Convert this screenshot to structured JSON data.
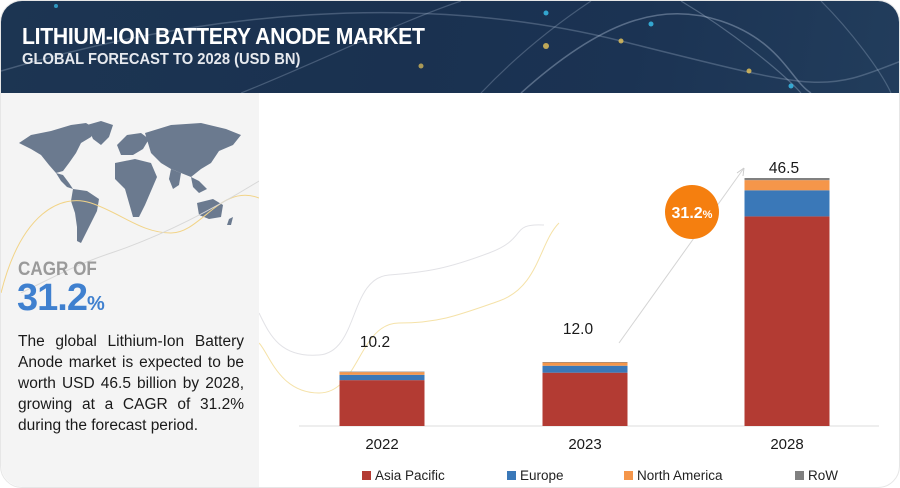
{
  "header": {
    "title": "LITHIUM-ION BATTERY ANODE MARKET",
    "subtitle": "GLOBAL FORECAST TO 2028 (USD BN)"
  },
  "left_panel": {
    "map_icon": "world-map-icon",
    "cagr_label": "CAGR OF",
    "cagr_number": "31.2",
    "cagr_percent": "%",
    "description": "The global Lithium-Ion Battery Anode market is expected to be worth USD 46.5 billion by 2028, growing at a CAGR of 31.2% during the forecast period."
  },
  "colors": {
    "asia_pacific": "#b33b33",
    "europe": "#3a78b8",
    "north_america": "#f5964a",
    "row": "#808080",
    "badge": "#f57f0f",
    "accent_blue": "#3f80cf"
  },
  "chart_data": {
    "type": "bar",
    "stacked": true,
    "title": "Lithium-Ion Battery Anode Market, Global Forecast to 2028 (USD BN)",
    "categories": [
      "2022",
      "2023",
      "2028"
    ],
    "totals": [
      "10.2",
      "12.0",
      "46.5"
    ],
    "series": [
      {
        "name": "Asia Pacific",
        "color": "#b33b33",
        "values": [
          8.6,
          10.0,
          39.3
        ]
      },
      {
        "name": "Europe",
        "color": "#3a78b8",
        "values": [
          1.0,
          1.3,
          4.9
        ]
      },
      {
        "name": "North America",
        "color": "#f5964a",
        "values": [
          0.5,
          0.6,
          1.9
        ]
      },
      {
        "name": "RoW",
        "color": "#808080",
        "values": [
          0.1,
          0.1,
          0.4
        ]
      }
    ],
    "ylim": [
      0,
      46.5
    ],
    "grid": false,
    "xlabel": "",
    "ylabel": "",
    "legend_position": "bottom",
    "annotation": {
      "text": "31.2",
      "suffix": "%",
      "label": "CAGR badge with growth arrow"
    }
  }
}
